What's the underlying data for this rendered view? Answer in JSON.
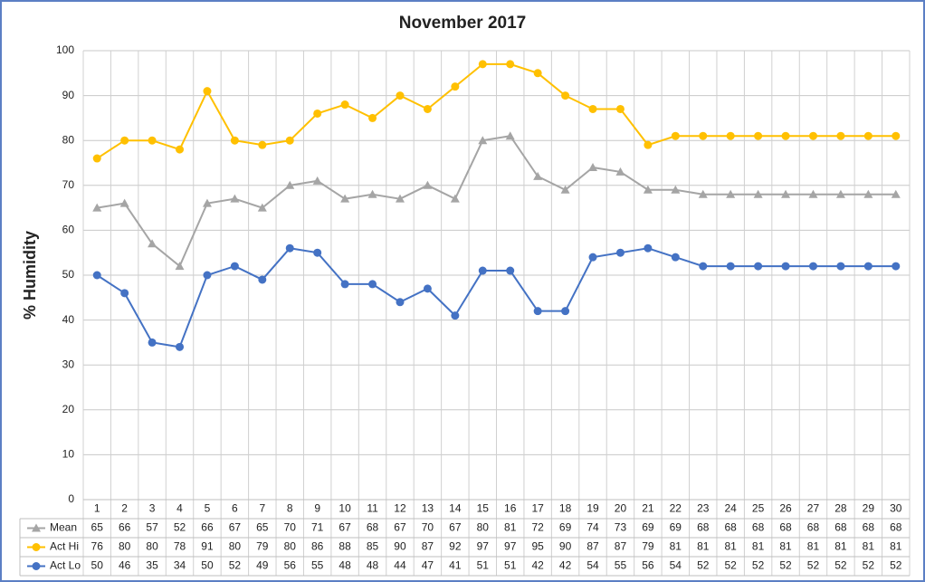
{
  "chart_data": {
    "type": "line",
    "title": "November 2017",
    "y_label": "% Humidity",
    "categories": [
      "1",
      "2",
      "3",
      "4",
      "5",
      "6",
      "7",
      "8",
      "9",
      "10",
      "11",
      "12",
      "13",
      "14",
      "15",
      "16",
      "17",
      "18",
      "19",
      "20",
      "21",
      "22",
      "23",
      "24",
      "25",
      "26",
      "27",
      "28",
      "29",
      "30"
    ],
    "series": [
      {
        "name": "Mean",
        "color": "#a5a5a5",
        "marker": "triangle",
        "values": [
          65,
          66,
          57,
          52,
          66,
          67,
          65,
          70,
          71,
          67,
          68,
          67,
          70,
          67,
          80,
          81,
          72,
          69,
          74,
          73,
          69,
          69,
          68,
          68,
          68,
          68,
          68,
          68,
          68,
          68
        ]
      },
      {
        "name": "Act Hi",
        "color": "#ffc000",
        "marker": "circle",
        "values": [
          76,
          80,
          80,
          78,
          91,
          80,
          79,
          80,
          86,
          88,
          85,
          90,
          87,
          92,
          97,
          97,
          95,
          90,
          87,
          87,
          79,
          81,
          81,
          81,
          81,
          81,
          81,
          81,
          81,
          81
        ]
      },
      {
        "name": "Act Lo",
        "color": "#4472c4",
        "marker": "circle",
        "values": [
          50,
          46,
          35,
          34,
          50,
          52,
          49,
          56,
          55,
          48,
          48,
          44,
          47,
          41,
          51,
          51,
          42,
          42,
          54,
          55,
          56,
          54,
          52,
          52,
          52,
          52,
          52,
          52,
          52,
          52
        ]
      }
    ],
    "ylim": [
      0,
      100
    ],
    "yticks": [
      0,
      10,
      20,
      30,
      40,
      50,
      60,
      70,
      80,
      90,
      100
    ],
    "grid": true,
    "data_table": true
  }
}
